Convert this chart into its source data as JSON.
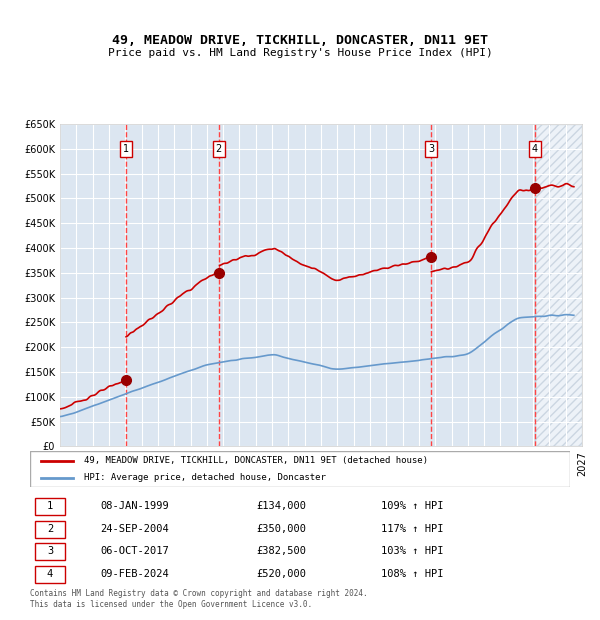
{
  "title": "49, MEADOW DRIVE, TICKHILL, DONCASTER, DN11 9ET",
  "subtitle": "Price paid vs. HM Land Registry's House Price Index (HPI)",
  "legend_red": "49, MEADOW DRIVE, TICKHILL, DONCASTER, DN11 9ET (detached house)",
  "legend_blue": "HPI: Average price, detached house, Doncaster",
  "footer": "Contains HM Land Registry data © Crown copyright and database right 2024.\nThis data is licensed under the Open Government Licence v3.0.",
  "transactions": [
    {
      "num": 1,
      "date": "08-JAN-1999",
      "price": 134000,
      "pct": "109%",
      "dir": "↑"
    },
    {
      "num": 2,
      "date": "24-SEP-2004",
      "price": 350000,
      "pct": "117%",
      "dir": "↑"
    },
    {
      "num": 3,
      "date": "06-OCT-2017",
      "price": 382500,
      "pct": "103%",
      "dir": "↑"
    },
    {
      "num": 4,
      "date": "09-FEB-2024",
      "price": 520000,
      "pct": "108%",
      "dir": "↑"
    }
  ],
  "transaction_dates_decimal": [
    1999.03,
    2004.73,
    2017.76,
    2024.11
  ],
  "ylim": [
    0,
    650000
  ],
  "yticks": [
    0,
    50000,
    100000,
    150000,
    200000,
    250000,
    300000,
    350000,
    400000,
    450000,
    500000,
    550000,
    600000,
    650000
  ],
  "xlim_start": 1995.0,
  "xlim_end": 2027.0,
  "background_color": "#dce6f1",
  "grid_color": "#ffffff",
  "red_line_color": "#cc0000",
  "blue_line_color": "#6699cc",
  "dashed_line_color": "#ff4444",
  "marker_color": "#990000",
  "hatch_color": "#aabbcc"
}
